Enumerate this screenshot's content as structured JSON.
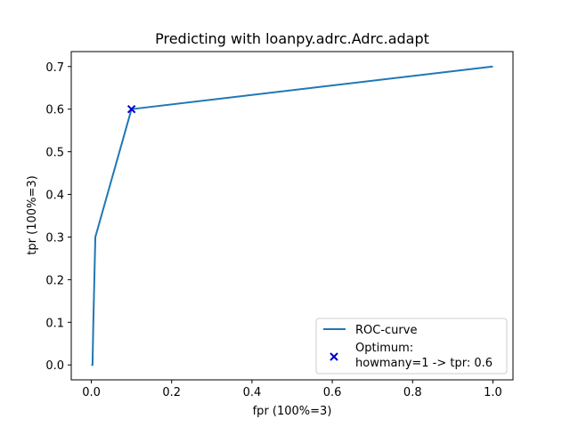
{
  "chart_data": {
    "type": "line",
    "title": "Predicting with loanpy.adrc.Adrc.adapt",
    "xlabel": "fpr (100%=3)",
    "ylabel": "tpr (100%=3)",
    "xlim": [
      -0.05,
      1.05
    ],
    "ylim": [
      -0.035,
      0.735
    ],
    "xticks": [
      0.0,
      0.2,
      0.4,
      0.6,
      0.8,
      1.0
    ],
    "xtick_labels": [
      "0.0",
      "0.2",
      "0.4",
      "0.6",
      "0.8",
      "1.0"
    ],
    "yticks": [
      0.0,
      0.1,
      0.2,
      0.3,
      0.4,
      0.5,
      0.6,
      0.7
    ],
    "ytick_labels": [
      "0.0",
      "0.1",
      "0.2",
      "0.3",
      "0.4",
      "0.5",
      "0.6",
      "0.7"
    ],
    "grid": false,
    "legend_position": "lower-right",
    "series": [
      {
        "name": "ROC-curve",
        "color": "#1f77b4",
        "x": [
          0.0,
          0.003,
          0.005,
          0.01,
          0.1,
          1.0
        ],
        "y": [
          0.0,
          0.0,
          0.1,
          0.3,
          0.6,
          0.7
        ]
      }
    ],
    "optimum": {
      "legend_line1": "Optimum:",
      "legend_line2": "howmany=1 -> tpr: 0.6",
      "x": 0.1,
      "y": 0.6,
      "color": "#0000cc",
      "marker": "x"
    }
  }
}
